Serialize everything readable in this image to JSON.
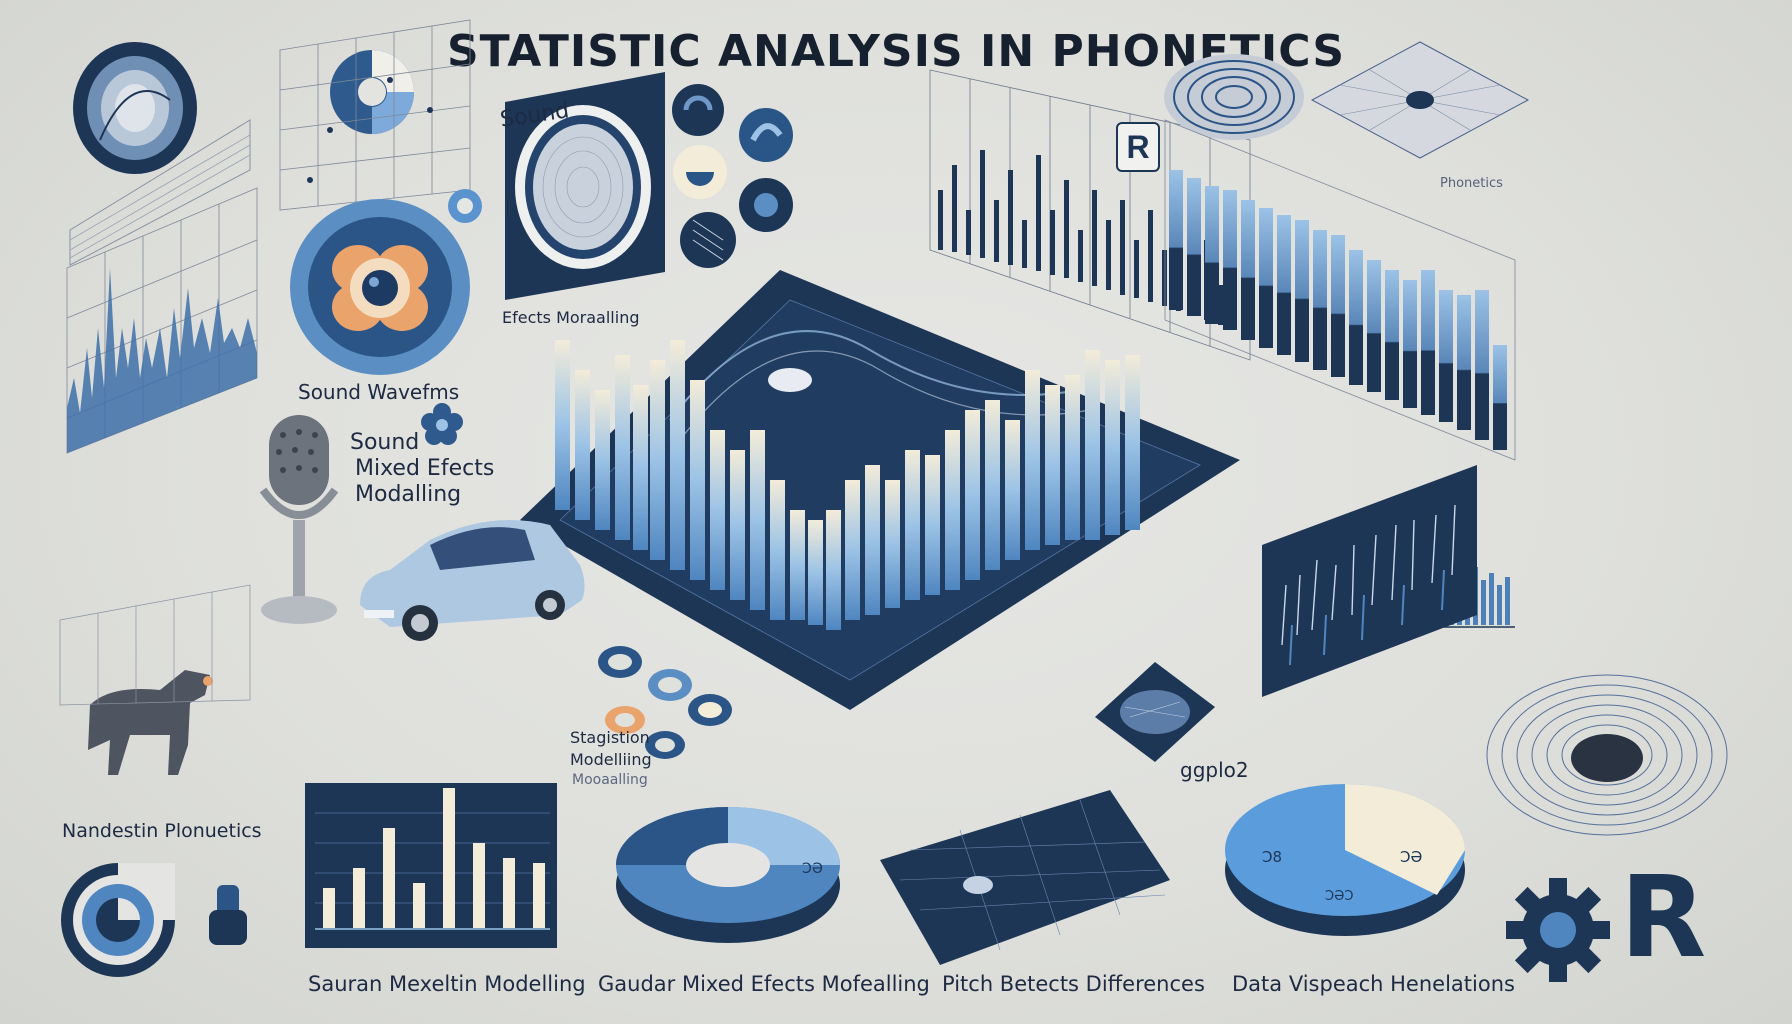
{
  "title": "STATISTIC ANALYSIS IN PHONETICS",
  "labels": {
    "sound_top": "Sound",
    "effects_modelling": "Efects Moraalling",
    "sound_wavefms": "Sound Wavefms",
    "sound_mixed_line1": "Sound",
    "sound_mixed_line2": "Mixed Efects",
    "sound_mixed_line3": "Modalling",
    "stat_line1": "Stagistion",
    "stat_line2": "Modelliing",
    "stat_line3": "Mooaalling",
    "ggplot": "ggplo2",
    "phonetics_small": "Phonetics",
    "r_small": "R",
    "r_big": "R",
    "pie_label_left": "Ɔ8",
    "pie_label_right": "ƆƏ",
    "pie_label_bottom": "ƆƏƆ",
    "donut_label": "ƆƏ"
  },
  "captions": [
    "Nandestin Plonuetics",
    "Sauran Mexeltin Modelling",
    "Gaudar Mixed Efects Mofealling",
    "Pitch Betects Differences",
    "Data Vispeach Henelations"
  ],
  "colors": {
    "navy": "#1e3656",
    "blue": "#4f86c0",
    "light_blue": "#9cc3e6",
    "cream": "#f3ecd9",
    "orange": "#e9a36b"
  }
}
